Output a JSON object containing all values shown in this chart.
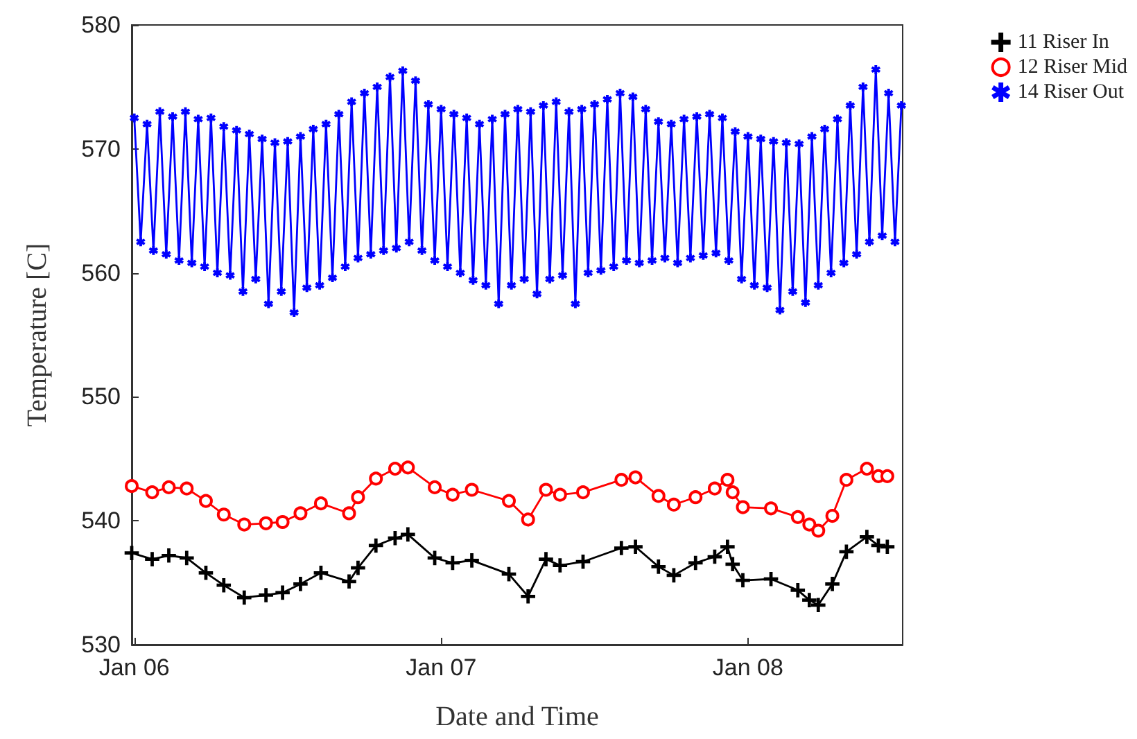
{
  "chart_data": {
    "type": "line",
    "xlabel": "Date and Time",
    "ylabel": "Temperature [C]",
    "xlim": [
      "--01-05T23:48",
      "--01-08T12:06"
    ],
    "xticks": [
      {
        "value": "--01-06",
        "label": "Jan 06"
      },
      {
        "value": "--01-07",
        "label": "Jan 07"
      },
      {
        "value": "--01-08",
        "label": "Jan 08"
      }
    ],
    "ylim": [
      530,
      580
    ],
    "yticks": [
      530,
      540,
      550,
      560,
      570,
      580
    ],
    "grid": false,
    "legend": "top right",
    "line_style": "solid",
    "series": [
      {
        "name": "11 Riser In",
        "color": "#000000",
        "marker": "cross",
        "x": [
          "--01-05T23:48",
          "--01-06T01:24",
          "--01-06T02:42",
          "--01-06T04:06",
          "--01-06T05:36",
          "--01-06T07:00",
          "--01-06T08:36",
          "--01-06T10:18",
          "--01-06T11:36",
          "--01-06T13:00",
          "--01-06T14:36",
          "--01-06T16:48",
          "--01-06T17:30",
          "--01-06T18:54",
          "--01-06T20:24",
          "--01-06T21:24",
          "--01-06T23:30",
          "--01-07T00:54",
          "--01-07T02:24",
          "--01-07T05:18",
          "--01-07T06:48",
          "--01-07T08:12",
          "--01-07T09:18",
          "--01-07T11:06",
          "--01-07T14:06",
          "--01-07T15:12",
          "--01-07T17:00",
          "--01-07T18:12",
          "--01-07T19:54",
          "--01-07T21:24",
          "--01-07T22:24",
          "--01-07T22:48",
          "--01-07T23:36",
          "--01-08T01:48",
          "--01-08T03:54",
          "--01-08T04:48",
          "--01-08T05:30",
          "--01-08T06:36",
          "--01-08T07:42",
          "--01-08T09:18",
          "--01-08T10:12",
          "--01-08T10:54"
        ],
        "values": [
          537.4,
          536.9,
          537.2,
          537.0,
          535.8,
          534.8,
          533.8,
          534.0,
          534.2,
          534.9,
          535.8,
          535.1,
          536.2,
          538.0,
          538.6,
          538.9,
          537.0,
          536.6,
          536.8,
          535.7,
          533.9,
          536.9,
          536.4,
          536.7,
          537.8,
          537.9,
          536.3,
          535.6,
          536.6,
          537.1,
          537.9,
          536.5,
          535.2,
          535.3,
          534.4,
          533.6,
          533.2,
          534.9,
          537.5,
          538.7,
          538.0,
          537.9
        ]
      },
      {
        "name": "12 Riser Mid",
        "color": "#ff0000",
        "marker": "circle",
        "x": [
          "--01-05T23:48",
          "--01-06T01:24",
          "--01-06T02:42",
          "--01-06T04:06",
          "--01-06T05:36",
          "--01-06T07:00",
          "--01-06T08:36",
          "--01-06T10:18",
          "--01-06T11:36",
          "--01-06T13:00",
          "--01-06T14:36",
          "--01-06T16:48",
          "--01-06T17:30",
          "--01-06T18:54",
          "--01-06T20:24",
          "--01-06T21:24",
          "--01-06T23:30",
          "--01-07T00:54",
          "--01-07T02:24",
          "--01-07T05:18",
          "--01-07T06:48",
          "--01-07T08:12",
          "--01-07T09:18",
          "--01-07T11:06",
          "--01-07T14:06",
          "--01-07T15:12",
          "--01-07T17:00",
          "--01-07T18:12",
          "--01-07T19:54",
          "--01-07T21:24",
          "--01-07T22:24",
          "--01-07T22:48",
          "--01-07T23:36",
          "--01-08T01:48",
          "--01-08T03:54",
          "--01-08T04:48",
          "--01-08T05:30",
          "--01-08T06:36",
          "--01-08T07:42",
          "--01-08T09:18",
          "--01-08T10:12",
          "--01-08T10:54"
        ],
        "values": [
          542.8,
          542.3,
          542.7,
          542.6,
          541.6,
          540.5,
          539.7,
          539.8,
          539.9,
          540.6,
          541.4,
          540.6,
          541.9,
          543.4,
          544.2,
          544.3,
          542.7,
          542.1,
          542.5,
          541.6,
          540.1,
          542.5,
          542.1,
          542.3,
          543.3,
          543.5,
          542.0,
          541.3,
          541.9,
          542.6,
          543.3,
          542.3,
          541.1,
          541.0,
          540.3,
          539.7,
          539.2,
          540.4,
          543.3,
          544.2,
          543.6,
          543.6
        ]
      },
      {
        "name": "14 Riser Out",
        "color": "#0000ff",
        "marker": "star",
        "x": [
          "--01-06T00:00",
          "--01-06T00:30",
          "--01-06T01:00",
          "--01-06T01:30",
          "--01-06T02:00",
          "--01-06T02:30",
          "--01-06T03:00",
          "--01-06T03:30",
          "--01-06T04:00",
          "--01-06T04:30",
          "--01-06T05:00",
          "--01-06T05:30",
          "--01-06T06:00",
          "--01-06T06:30",
          "--01-06T07:00",
          "--01-06T07:30",
          "--01-06T08:00",
          "--01-06T08:30",
          "--01-06T09:00",
          "--01-06T09:30",
          "--01-06T10:00",
          "--01-06T10:30",
          "--01-06T11:00",
          "--01-06T11:30",
          "--01-06T12:00",
          "--01-06T12:30",
          "--01-06T13:00",
          "--01-06T13:30",
          "--01-06T14:00",
          "--01-06T14:30",
          "--01-06T15:00",
          "--01-06T15:30",
          "--01-06T16:00",
          "--01-06T16:30",
          "--01-06T17:00",
          "--01-06T17:30",
          "--01-06T18:00",
          "--01-06T18:30",
          "--01-06T19:00",
          "--01-06T19:30",
          "--01-06T20:00",
          "--01-06T20:30",
          "--01-06T21:00",
          "--01-06T21:30",
          "--01-06T22:00",
          "--01-06T22:30",
          "--01-06T23:00",
          "--01-06T23:30",
          "--01-07T00:00",
          "--01-07T00:30",
          "--01-07T01:00",
          "--01-07T01:30",
          "--01-07T02:00",
          "--01-07T02:30",
          "--01-07T03:00",
          "--01-07T03:30",
          "--01-07T04:00",
          "--01-07T04:30",
          "--01-07T05:00",
          "--01-07T05:30",
          "--01-07T06:00",
          "--01-07T06:30",
          "--01-07T07:00",
          "--01-07T07:30",
          "--01-07T08:00",
          "--01-07T08:30",
          "--01-07T09:00",
          "--01-07T09:30",
          "--01-07T10:00",
          "--01-07T10:30",
          "--01-07T11:00",
          "--01-07T11:30",
          "--01-07T12:00",
          "--01-07T12:30",
          "--01-07T13:00",
          "--01-07T13:30",
          "--01-07T14:00",
          "--01-07T14:30",
          "--01-07T15:00",
          "--01-07T15:30",
          "--01-07T16:00",
          "--01-07T16:30",
          "--01-07T17:00",
          "--01-07T17:30",
          "--01-07T18:00",
          "--01-07T18:30",
          "--01-07T19:00",
          "--01-07T19:30",
          "--01-07T20:00",
          "--01-07T20:30",
          "--01-07T21:00",
          "--01-07T21:30",
          "--01-07T22:00",
          "--01-07T22:30",
          "--01-07T23:00",
          "--01-07T23:30",
          "--01-08T00:00",
          "--01-08T00:30",
          "--01-08T01:00",
          "--01-08T01:30",
          "--01-08T02:00",
          "--01-08T02:30",
          "--01-08T03:00",
          "--01-08T03:30",
          "--01-08T04:00",
          "--01-08T04:30",
          "--01-08T05:00",
          "--01-08T05:30",
          "--01-08T06:00",
          "--01-08T06:30",
          "--01-08T07:00",
          "--01-08T07:30",
          "--01-08T08:00",
          "--01-08T08:30",
          "--01-08T09:00",
          "--01-08T09:30",
          "--01-08T10:00",
          "--01-08T10:30",
          "--01-08T11:00",
          "--01-08T11:30",
          "--01-08T12:00"
        ],
        "values": [
          572.5,
          562.5,
          572,
          561.8,
          573,
          561.5,
          572.6,
          561,
          573,
          560.8,
          572.4,
          560.5,
          572.5,
          560,
          571.8,
          559.8,
          571.5,
          558.5,
          571.2,
          559.5,
          570.8,
          557.5,
          570.5,
          558.5,
          570.6,
          556.8,
          571,
          558.8,
          571.6,
          559,
          572,
          559.6,
          572.8,
          560.5,
          573.8,
          561.2,
          574.5,
          561.5,
          575,
          561.8,
          575.8,
          562,
          576.3,
          562.5,
          575.5,
          561.8,
          573.6,
          561,
          573.2,
          560.5,
          572.8,
          560,
          572.5,
          559.4,
          572,
          559,
          572.4,
          557.5,
          572.8,
          559,
          573.2,
          559.5,
          573,
          558.3,
          573.5,
          559.5,
          573.8,
          559.8,
          573,
          557.5,
          573.2,
          560,
          573.6,
          560.2,
          574,
          560.5,
          574.5,
          561,
          574.2,
          560.8,
          573.2,
          561,
          572.2,
          561.2,
          572,
          560.8,
          572.4,
          561.2,
          572.6,
          561.4,
          572.8,
          561.6,
          572.5,
          561,
          571.4,
          559.5,
          571,
          559,
          570.8,
          558.8,
          570.6,
          557,
          570.5,
          558.5,
          570.4,
          557.6,
          571,
          559,
          571.6,
          560,
          572.4,
          560.8,
          573.5,
          561.5,
          575,
          562.5,
          576.4,
          563,
          574.5,
          562.5,
          573.5
        ]
      }
    ]
  }
}
